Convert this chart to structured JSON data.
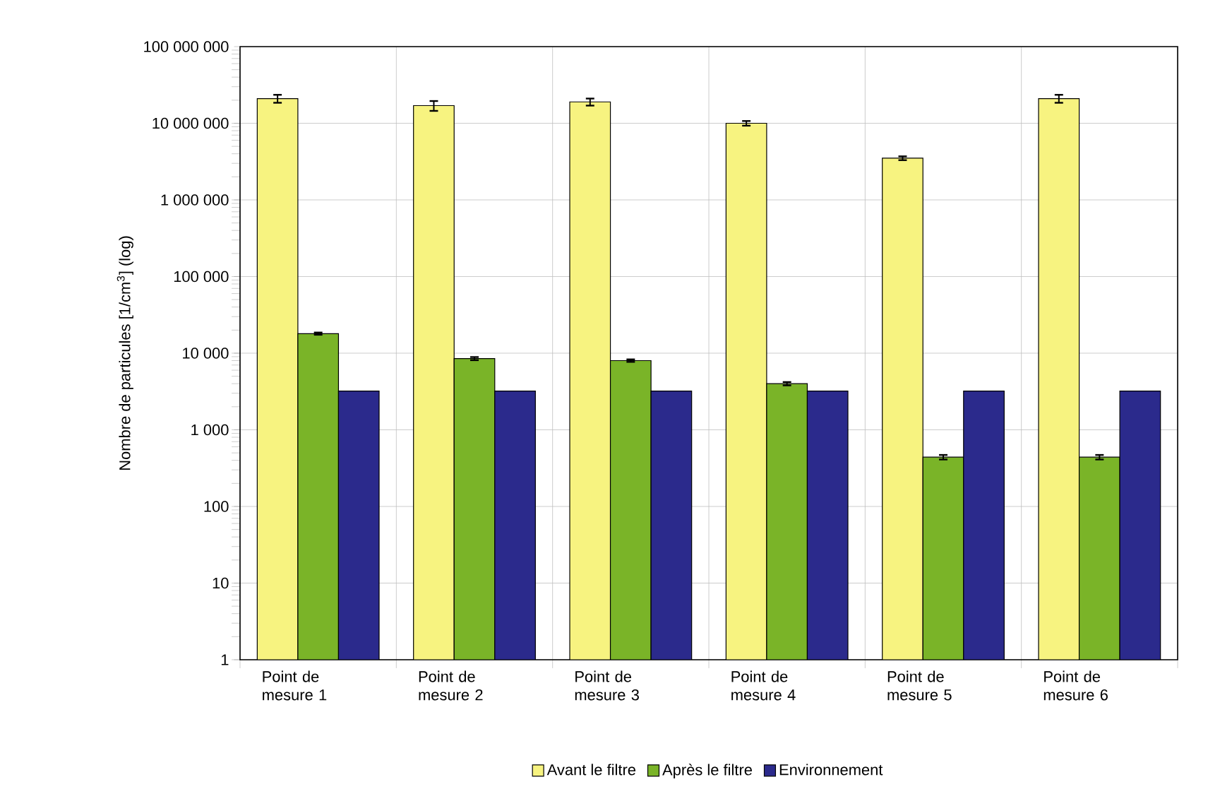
{
  "chart_data": {
    "type": "bar",
    "ylabel": "Nombre de particules [1/cm$^{3}$] (log)",
    "categories": [
      "Point de mesure 1",
      "Point de mesure 2",
      "Point de mesure 3",
      "Point de mesure 4",
      "Point de mesure 5",
      "Point de mesure 6"
    ],
    "series": [
      {
        "name": "Avant le filtre",
        "color": "#f7f380",
        "values": [
          21000000,
          17000000,
          19000000,
          10000000,
          3500000,
          21000000
        ],
        "errors": [
          2500000,
          2500000,
          2000000,
          700000,
          200000,
          2500000
        ]
      },
      {
        "name": "Après le filtre",
        "color": "#7ab428",
        "values": [
          18000,
          8500,
          8000,
          4000,
          440,
          440
        ],
        "errors": [
          600,
          400,
          300,
          200,
          30,
          30
        ]
      },
      {
        "name": "Environnement",
        "color": "#2b2a8c",
        "values": [
          3200,
          3200,
          3200,
          3200,
          3200,
          3200
        ]
      }
    ],
    "log": "y",
    "ylim": [
      1,
      100000000
    ],
    "yticks": [
      1,
      10,
      100,
      {
        "value": 1000,
        "label": "1 000"
      },
      {
        "value": 10000,
        "label": "10 000"
      },
      {
        "value": 100000,
        "label": "100 000"
      },
      {
        "value": 1000000,
        "label": "1 000 000"
      },
      {
        "value": 10000000,
        "label": "10 000 000"
      },
      {
        "value": 100000000,
        "label": "100 000 000"
      }
    ],
    "grid": true,
    "legend": "bottom"
  }
}
